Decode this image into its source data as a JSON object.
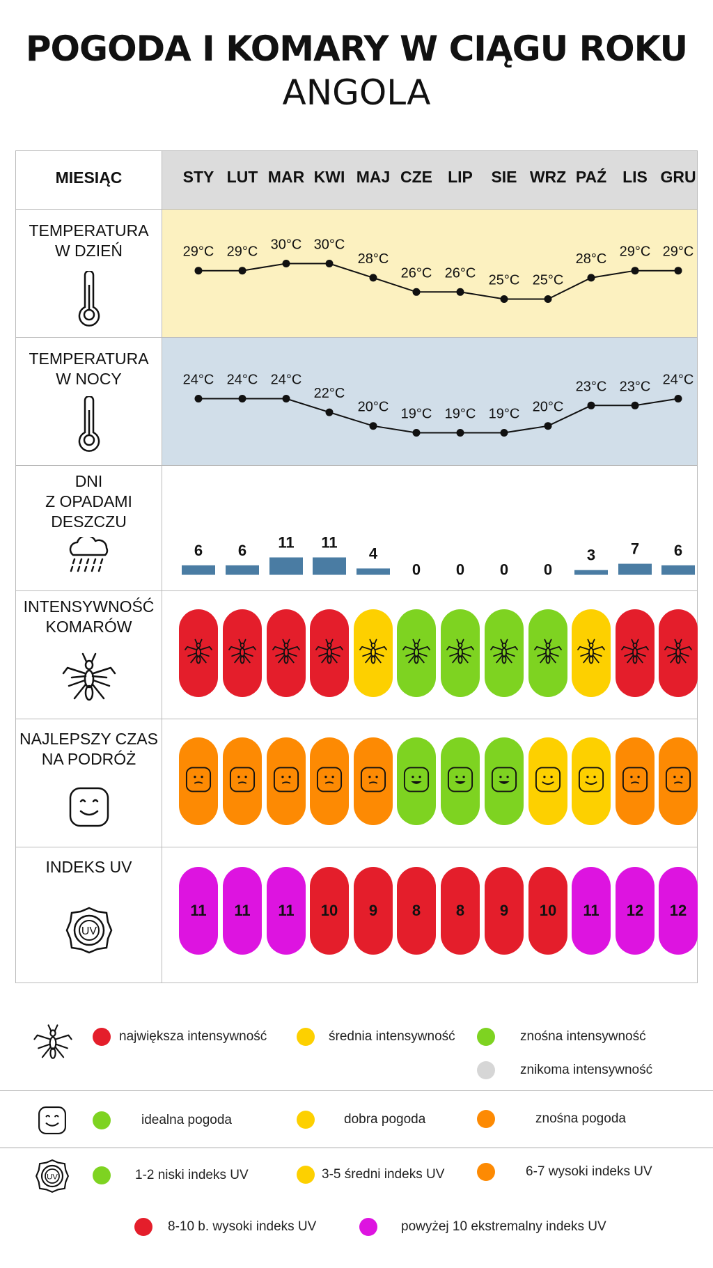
{
  "title": "POGODA I KOMARY W CIĄGU ROKU",
  "subtitle": "ANGOLA",
  "colors": {
    "red": "#e41e2b",
    "yellow": "#fdd000",
    "green": "#7ed321",
    "gray": "#d6d6d6",
    "orange": "#fd8a03",
    "magenta": "#dd14e0",
    "rain_bar": "#4a7ca3",
    "day_bg": "#fcf1c0",
    "night_bg": "#d1dee9",
    "header_bg": "#dcdcdc"
  },
  "rows": {
    "month_label": "MIESIĄC",
    "day_temp_label": [
      "TEMPERATURA",
      "W DZIEŃ"
    ],
    "night_temp_label": [
      "TEMPERATURA",
      "W NOCY"
    ],
    "rain_label": [
      "DNI",
      "Z OPADAMI",
      "DESZCZU"
    ],
    "mosquito_label": [
      "INTENSYWNOŚĆ",
      "KOMARÓW"
    ],
    "travel_label": [
      "NAJLEPSZY CZAS",
      "NA PODRÓŻ"
    ],
    "uv_label": [
      "INDEKS UV"
    ],
    "uv_icon_text": "UV"
  },
  "chart_data": {
    "type": "table",
    "months": [
      "STY",
      "LUT",
      "MAR",
      "KWI",
      "MAJ",
      "CZE",
      "LIP",
      "SIE",
      "WRZ",
      "PAŹ",
      "LIS",
      "GRU"
    ],
    "day_temperature_c": [
      29,
      29,
      30,
      30,
      28,
      26,
      26,
      25,
      25,
      28,
      29,
      29
    ],
    "night_temperature_c": [
      24,
      24,
      24,
      22,
      20,
      19,
      19,
      19,
      20,
      23,
      23,
      24
    ],
    "temperature_unit": "°C",
    "rain_days": [
      6,
      6,
      11,
      11,
      4,
      0,
      0,
      0,
      0,
      3,
      7,
      6
    ],
    "mosquito_intensity": [
      "red",
      "red",
      "red",
      "red",
      "yellow",
      "green",
      "green",
      "green",
      "green",
      "yellow",
      "red",
      "red"
    ],
    "travel_rating": [
      "orange",
      "orange",
      "orange",
      "orange",
      "orange",
      "green",
      "green",
      "green",
      "yellow",
      "yellow",
      "orange",
      "orange"
    ],
    "uv_index": [
      11,
      11,
      11,
      10,
      9,
      8,
      8,
      9,
      10,
      11,
      12,
      12
    ],
    "uv_color": [
      "magenta",
      "magenta",
      "magenta",
      "red",
      "red",
      "red",
      "red",
      "red",
      "red",
      "magenta",
      "magenta",
      "magenta"
    ]
  },
  "legend": {
    "mosquito": [
      {
        "color": "red",
        "label": "największa intensywność"
      },
      {
        "color": "yellow",
        "label": "średnia intensywność"
      },
      {
        "color": "green",
        "label": "znośna intensywność"
      },
      {
        "color": "gray",
        "label": "znikoma intensywność"
      }
    ],
    "weather": [
      {
        "color": "green",
        "label": "idealna pogoda"
      },
      {
        "color": "yellow",
        "label": "dobra pogoda"
      },
      {
        "color": "orange",
        "label": "znośna pogoda"
      }
    ],
    "uv": [
      {
        "color": "green",
        "label": "1-2 niski indeks UV"
      },
      {
        "color": "yellow",
        "label": "3-5 średni indeks UV"
      },
      {
        "color": "orange",
        "label": "6-7 wysoki indeks UV"
      },
      {
        "color": "red",
        "label": "8-10 b. wysoki indeks UV"
      },
      {
        "color": "magenta",
        "label": "powyżej 10 ekstremalny indeks UV"
      }
    ]
  }
}
